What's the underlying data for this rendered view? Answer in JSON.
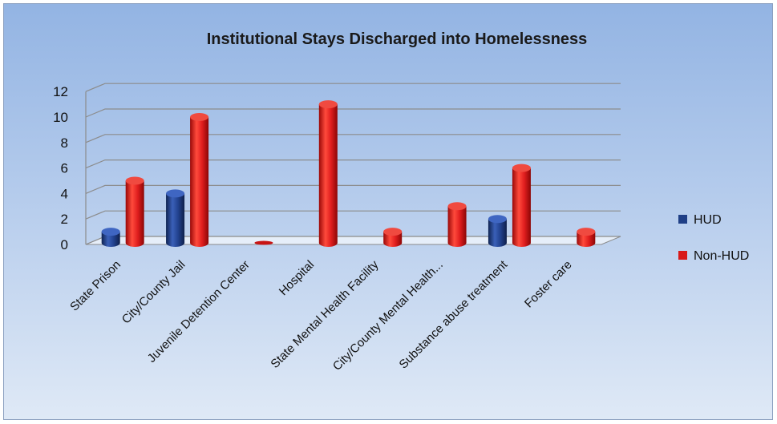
{
  "chart_data": {
    "type": "bar",
    "title": "Institutional Stays Discharged into Homelessness",
    "categories": [
      "State Prison",
      "City/County Jail",
      "Juvenile Detention Center",
      "Hospital",
      "State Mental Health Facility",
      "City/County Mental Health...",
      "Substance abuse treatment",
      "Foster care"
    ],
    "series": [
      {
        "name": "HUD",
        "color": "#1f3f86",
        "values": [
          1,
          4,
          0,
          0,
          0,
          0,
          2,
          0
        ]
      },
      {
        "name": "Non-HUD",
        "color": "#d81a1a",
        "values": [
          5,
          10,
          0,
          11,
          1,
          3,
          6,
          1
        ]
      }
    ],
    "yticks": [
      0,
      2,
      4,
      6,
      8,
      10,
      12
    ],
    "ylim": [
      0,
      12
    ],
    "grid": true,
    "legend": "right",
    "style": "3d-cylinder"
  }
}
